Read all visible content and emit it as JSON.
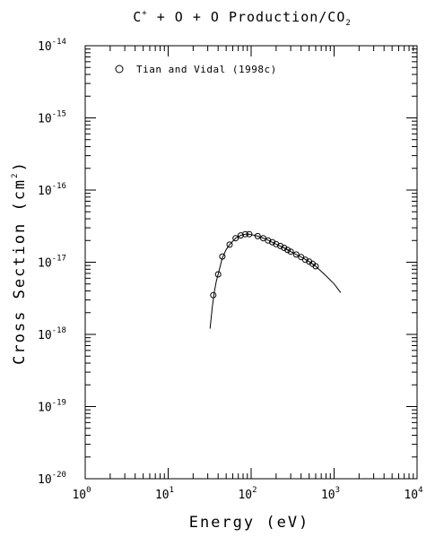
{
  "chart_data": {
    "type": "scatter",
    "title": "C⁺ + O + O Production/CO₂",
    "title_main": "C",
    "title_sup": "+",
    "title_mid": " + O + O Production/CO",
    "title_sub": "2",
    "xlabel": "Energy (eV)",
    "ylabel_main": "Cross Section (cm",
    "ylabel_sup": "2",
    "ylabel_end": ")",
    "x_scale": "log",
    "y_scale": "log",
    "xlim": [
      1,
      10000
    ],
    "ylim": [
      1e-20,
      1e-14
    ],
    "x_ticks": [
      {
        "base": "10",
        "exp": "0"
      },
      {
        "base": "10",
        "exp": "1"
      },
      {
        "base": "10",
        "exp": "2"
      },
      {
        "base": "10",
        "exp": "3"
      },
      {
        "base": "10",
        "exp": "4"
      }
    ],
    "y_ticks": [
      {
        "base": "10",
        "exp": "-20"
      },
      {
        "base": "10",
        "exp": "-19"
      },
      {
        "base": "10",
        "exp": "-18"
      },
      {
        "base": "10",
        "exp": "-17"
      },
      {
        "base": "10",
        "exp": "-16"
      },
      {
        "base": "10",
        "exp": "-15"
      },
      {
        "base": "10",
        "exp": "-14"
      }
    ],
    "grid": false,
    "legend": {
      "position": "top-left",
      "entries": [
        "Tian and Vidal (1998c)"
      ]
    },
    "series": [
      {
        "name": "Tian and Vidal (1998c)",
        "marker": "circle",
        "x": [
          35,
          40,
          45,
          55,
          65,
          75,
          85,
          95,
          120,
          140,
          160,
          180,
          200,
          225,
          250,
          275,
          300,
          350,
          400,
          450,
          500,
          550,
          600
        ],
        "y": [
          3.5e-18,
          6.8e-18,
          1.2e-17,
          1.75e-17,
          2.15e-17,
          2.35e-17,
          2.45e-17,
          2.45e-17,
          2.3e-17,
          2.15e-17,
          2e-17,
          1.9e-17,
          1.78e-17,
          1.68e-17,
          1.58e-17,
          1.48e-17,
          1.4e-17,
          1.28e-17,
          1.18e-17,
          1.08e-17,
          1.02e-17,
          9.5e-18,
          8.8e-18
        ]
      },
      {
        "name": "",
        "type": "line",
        "x": [
          32,
          34,
          36,
          38,
          40,
          45,
          50,
          55,
          65,
          75,
          85,
          95,
          120,
          150,
          200,
          250,
          300,
          400,
          500,
          600,
          800,
          1000,
          1200
        ],
        "y": [
          1.2e-18,
          2.4e-18,
          3.9e-18,
          5.4e-18,
          6.8e-18,
          1.15e-17,
          1.5e-17,
          1.75e-17,
          2.15e-17,
          2.35e-17,
          2.45e-17,
          2.45e-17,
          2.3e-17,
          2.1e-17,
          1.78e-17,
          1.58e-17,
          1.4e-17,
          1.18e-17,
          1.02e-17,
          8.8e-18,
          6.5e-18,
          5e-18,
          3.8e-18
        ]
      }
    ]
  }
}
